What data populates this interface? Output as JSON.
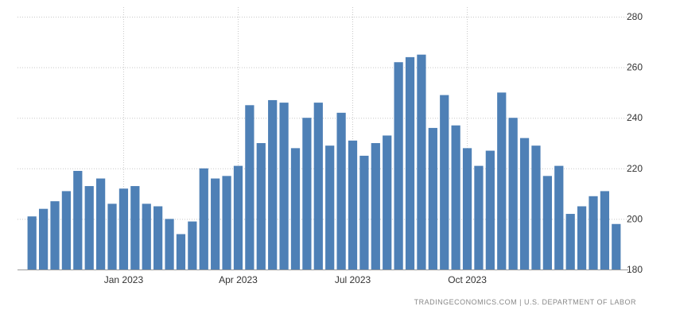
{
  "chart_data": {
    "type": "bar",
    "title": "",
    "xlabel": "",
    "ylabel": "",
    "ylim": [
      180,
      280
    ],
    "yticks": [
      180,
      200,
      220,
      240,
      260,
      280
    ],
    "x_tick_labels": [
      {
        "label": "Jan 2023",
        "index": 8
      },
      {
        "label": "Apr 2023",
        "index": 18
      },
      {
        "label": "Jul 2023",
        "index": 28
      },
      {
        "label": "Oct 2023",
        "index": 38
      }
    ],
    "values": [
      201,
      204,
      207,
      211,
      219,
      213,
      216,
      206,
      212,
      213,
      206,
      205,
      200,
      194,
      199,
      220,
      216,
      217,
      221,
      245,
      230,
      247,
      246,
      228,
      240,
      246,
      229,
      242,
      231,
      225,
      230,
      233,
      262,
      264,
      265,
      236,
      249,
      237,
      228,
      221,
      227,
      250,
      240,
      232,
      229,
      217,
      221,
      202,
      205,
      209,
      211,
      198
    ],
    "grid": true,
    "y_axis_side": "right",
    "bar_color": "#4e80b6"
  },
  "source_text": "TRADINGECONOMICS.COM  |  U.S. DEPARTMENT OF LABOR"
}
